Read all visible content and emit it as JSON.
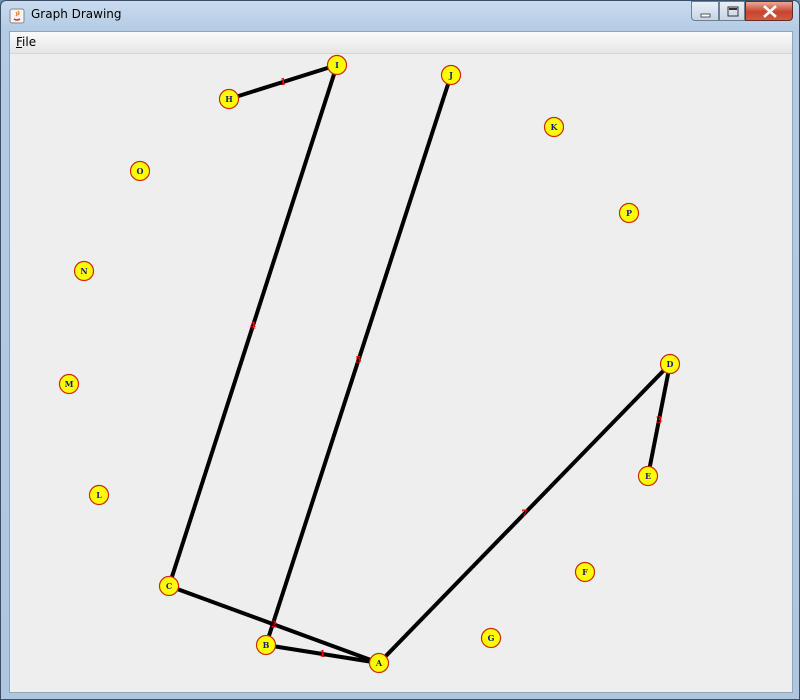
{
  "window": {
    "title": "Graph Drawing"
  },
  "menu": {
    "file_mnemonic": "F",
    "file_rest": "ile"
  },
  "graph": {
    "nodes": [
      {
        "id": "A"
      },
      {
        "id": "B"
      },
      {
        "id": "C"
      },
      {
        "id": "D"
      },
      {
        "id": "E"
      },
      {
        "id": "F"
      },
      {
        "id": "G"
      },
      {
        "id": "H"
      },
      {
        "id": "I"
      },
      {
        "id": "J"
      },
      {
        "id": "K"
      },
      {
        "id": "L"
      },
      {
        "id": "M"
      },
      {
        "id": "N"
      },
      {
        "id": "O"
      },
      {
        "id": "P"
      }
    ],
    "edges": [
      {
        "from": "H",
        "to": "I",
        "weight": "1"
      },
      {
        "from": "I",
        "to": "C",
        "weight": "4"
      },
      {
        "from": "J",
        "to": "B",
        "weight": "5"
      },
      {
        "from": "C",
        "to": "A",
        "weight": "2"
      },
      {
        "from": "B",
        "to": "A",
        "weight": "1"
      },
      {
        "from": "A",
        "to": "D",
        "weight": "7"
      },
      {
        "from": "D",
        "to": "E",
        "weight": "3"
      }
    ],
    "colors": {
      "node_fill": "#ffff00",
      "node_border": "#cc2a00",
      "node_text": "#1a1a80",
      "edge": "#000000",
      "weight": "#ff0000"
    }
  }
}
